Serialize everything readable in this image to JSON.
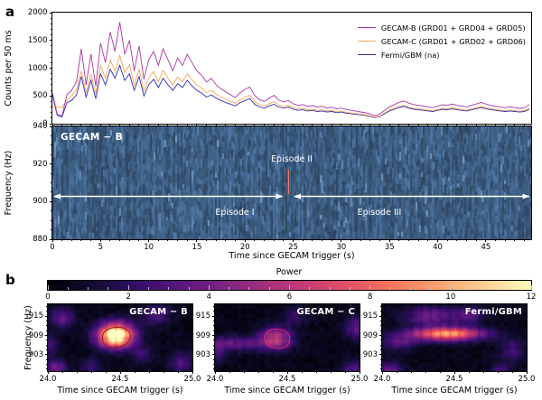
{
  "figure": {
    "panel_a_label": "a",
    "panel_b_label": "b"
  },
  "chart_data": [
    {
      "id": "lightcurve",
      "type": "line",
      "xlabel": "Time since GECAM trigger (s)",
      "ylabel": "Counts per 50 ms",
      "xlim": [
        0,
        49.7
      ],
      "ylim": [
        0,
        2000
      ],
      "yticks": [
        0,
        500,
        1000,
        1500,
        2000
      ],
      "x_start": 0,
      "x_step": 0.5,
      "legend_position": "upper right",
      "series": [
        {
          "name": "GECAM-B (GRD01 + GRD04 + GRD05)",
          "color": "#a935a3",
          "values": [
            560,
            170,
            140,
            520,
            600,
            760,
            1350,
            700,
            1250,
            680,
            1450,
            1100,
            1650,
            1300,
            1830,
            1250,
            1500,
            950,
            1400,
            800,
            1150,
            1300,
            1050,
            1350,
            1150,
            950,
            1180,
            1050,
            1250,
            1100,
            950,
            870,
            750,
            820,
            700,
            630,
            570,
            520,
            470,
            560,
            620,
            660,
            510,
            430,
            400,
            460,
            510,
            430,
            390,
            420,
            360,
            330,
            345,
            310,
            325,
            300,
            312,
            285,
            298,
            268,
            282,
            255,
            240,
            226,
            212,
            198,
            172,
            145,
            172,
            240,
            305,
            345,
            385,
            410,
            370,
            345,
            330,
            318,
            303,
            290,
            316,
            342,
            330,
            355,
            330,
            316,
            303,
            330,
            355,
            382,
            355,
            330,
            316,
            303,
            290,
            303,
            290,
            277,
            290,
            342
          ]
        },
        {
          "name": "GECAM-C (GRD01 + GRD02 + GRD06)",
          "color": "#f7a558",
          "values": [
            310,
            300,
            290,
            430,
            500,
            620,
            950,
            560,
            880,
            540,
            1050,
            820,
            1150,
            950,
            1230,
            920,
            1060,
            700,
            980,
            590,
            820,
            940,
            760,
            960,
            820,
            700,
            840,
            760,
            900,
            790,
            700,
            640,
            560,
            600,
            530,
            480,
            440,
            400,
            370,
            430,
            480,
            510,
            400,
            340,
            320,
            360,
            400,
            340,
            310,
            330,
            290,
            265,
            275,
            250,
            260,
            240,
            250,
            228,
            238,
            215,
            226,
            205,
            193,
            182,
            171,
            160,
            140,
            118,
            140,
            195,
            248,
            280,
            312,
            333,
            300,
            280,
            268,
            258,
            246,
            236,
            257,
            278,
            268,
            288,
            268,
            257,
            246,
            268,
            288,
            310,
            288,
            268,
            257,
            246,
            236,
            246,
            236,
            225,
            236,
            278
          ]
        },
        {
          "name": "Fermi/GBM (na)",
          "color": "#2e2eb4",
          "values": [
            520,
            150,
            120,
            380,
            420,
            520,
            850,
            480,
            780,
            450,
            900,
            700,
            980,
            820,
            1050,
            780,
            900,
            600,
            850,
            500,
            700,
            800,
            650,
            820,
            700,
            600,
            720,
            650,
            780,
            680,
            600,
            550,
            480,
            520,
            460,
            420,
            380,
            350,
            320,
            380,
            420,
            450,
            350,
            300,
            280,
            320,
            350,
            300,
            280,
            300,
            260,
            240,
            250,
            230,
            240,
            220,
            230,
            210,
            220,
            200,
            210,
            190,
            180,
            170,
            160,
            150,
            130,
            110,
            130,
            180,
            230,
            260,
            290,
            310,
            280,
            260,
            250,
            240,
            230,
            220,
            240,
            260,
            250,
            270,
            250,
            240,
            230,
            250,
            270,
            290,
            270,
            250,
            240,
            230,
            220,
            230,
            220,
            210,
            220,
            260
          ]
        }
      ]
    },
    {
      "id": "spectrogram_gecam_b",
      "type": "heatmap",
      "title": "GECAM − B",
      "xlabel": "Time since GECAM trigger (s)",
      "ylabel": "Frequency (Hz)",
      "xlim": [
        0,
        49.7
      ],
      "ylim": [
        880,
        940
      ],
      "xticks": [
        0,
        5,
        10,
        15,
        20,
        25,
        30,
        35,
        40,
        45
      ],
      "yticks": [
        880,
        900,
        920,
        940
      ],
      "base_color": "#3b5a87",
      "annotations": [
        {
          "label": "Episode I",
          "type": "double_arrow",
          "t_start": 0.15,
          "t_end": 23.9,
          "freq": 902.8
        },
        {
          "label": "Episode II",
          "type": "marker",
          "time": 24.5,
          "freq_start": 904,
          "freq_end": 917,
          "color": "#b51f1f"
        },
        {
          "label": "Episode III",
          "type": "double_arrow",
          "t_start": 25.1,
          "t_end": 49.5,
          "freq": 902.8
        }
      ]
    },
    {
      "id": "qpo_power_maps",
      "type": "heatmap",
      "xlabel": "Time since GECAM trigger (s)",
      "ylabel": "Frequency (Hz)",
      "xlim": [
        24.0,
        25.0
      ],
      "flim": [
        897.9,
        918.7
      ],
      "xticks": [
        24,
        24.5,
        25
      ],
      "xtick_labels": [
        "24.0",
        "24.5",
        "25.0"
      ],
      "yticks": [
        915,
        909,
        903
      ],
      "colorbar": {
        "title": "Power",
        "range": [
          0,
          12
        ],
        "ticks": [
          0,
          2,
          4,
          6,
          8,
          10,
          12
        ],
        "colormap": "magma",
        "colormap_stops": [
          [
            0,
            "#000004"
          ],
          [
            0.1,
            "#140e36"
          ],
          [
            0.2,
            "#3b0f70"
          ],
          [
            0.3,
            "#641a80"
          ],
          [
            0.4,
            "#8c2981"
          ],
          [
            0.5,
            "#b73779"
          ],
          [
            0.6,
            "#de4968"
          ],
          [
            0.7,
            "#f76f5c"
          ],
          [
            0.8,
            "#fe9f6d"
          ],
          [
            0.9,
            "#fece91"
          ],
          [
            1,
            "#fcfdbf"
          ]
        ]
      },
      "subplots": [
        {
          "title": "GECAM − B",
          "peak": {
            "time": 24.47,
            "freq": 909,
            "power": 12
          },
          "blobs": [
            [
              24.47,
              909,
              0.085,
              2.6,
              13.2
            ],
            [
              24.1,
              914.5,
              0.06,
              2.2,
              2.6
            ],
            [
              24.0,
              906,
              0.05,
              2.5,
              2.2
            ],
            [
              24.06,
              898.5,
              0.05,
              2.0,
              3.4
            ],
            [
              24.75,
              915.5,
              0.07,
              2.2,
              2.4
            ],
            [
              24.92,
              900.5,
              0.06,
              2.2,
              2.4
            ],
            [
              24.3,
              899.5,
              0.05,
              1.8,
              1.8
            ],
            [
              24.65,
              903,
              0.05,
              2.0,
              1.8
            ]
          ],
          "contour": {
            "time": 24.47,
            "freq": 908.6,
            "rt": 0.095,
            "rf": 3.0,
            "color": "#8b1a1a",
            "dashed": false
          }
        },
        {
          "title": "GECAM − C",
          "peak": {
            "time": 24.42,
            "freq": 908,
            "power": 5
          },
          "blobs": [
            [
              24.42,
              908,
              0.08,
              2.4,
              5.2
            ],
            [
              24.12,
              906.5,
              0.16,
              1.6,
              2.8
            ],
            [
              24.0,
              903.5,
              0.05,
              2.0,
              2.0
            ],
            [
              24.97,
              911.5,
              0.05,
              2.5,
              2.6
            ],
            [
              24.95,
              898.5,
              0.05,
              2.0,
              2.4
            ],
            [
              24.55,
              915,
              0.06,
              2.0,
              1.6
            ]
          ],
          "contour": {
            "time": 24.42,
            "freq": 908.2,
            "rt": 0.085,
            "rf": 2.8,
            "color": "#e3256e",
            "dashed": false
          }
        },
        {
          "title": "Fermi/GBM",
          "peak": {
            "time": 24.45,
            "freq": 909.5,
            "power": 8
          },
          "blobs": [
            [
              24.45,
              909.5,
              0.17,
              1.5,
              8.5
            ],
            [
              24.33,
              915,
              0.12,
              2.0,
              3.2
            ],
            [
              24.6,
              915.5,
              0.07,
              1.8,
              2.8
            ],
            [
              24.05,
              897.5,
              0.06,
              2.2,
              3.2
            ],
            [
              24.12,
              907,
              0.09,
              1.8,
              2.4
            ],
            [
              24.9,
              904.5,
              0.06,
              2.5,
              2.0
            ],
            [
              24.82,
              898,
              0.05,
              1.8,
              2.0
            ]
          ],
          "contour": {
            "time": 24.45,
            "freq": 909.6,
            "rt": 0.18,
            "rf": 1.3,
            "color": "#e01d1d",
            "dashed": true
          }
        }
      ]
    }
  ]
}
